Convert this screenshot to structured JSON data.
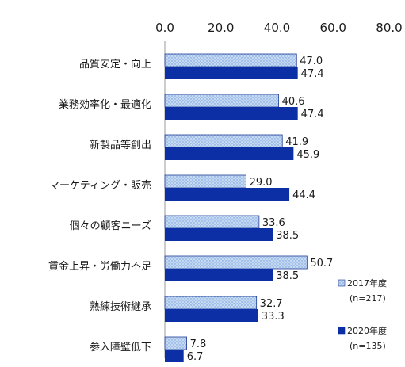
{
  "chart_data": {
    "type": "bar",
    "orientation": "horizontal",
    "title": "",
    "xlabel": "",
    "ylabel": "",
    "xlim": [
      0,
      80
    ],
    "x_ticks": [
      "0.0",
      "20.0",
      "40.0",
      "60.0",
      "80.0"
    ],
    "x_axis_position": "top",
    "grid": false,
    "legend_position": "bottom-right",
    "categories": [
      "品質安定・向上",
      "業務効率化・最適化",
      "新製品等創出",
      "マーケティング・販売",
      "個々の顧客ニーズ",
      "賃金上昇・労働力不足",
      "熟練技術継承",
      "参入障壁低下"
    ],
    "series": [
      {
        "name": "2017年度",
        "sample_size": "(n=217)",
        "values": [
          47.0,
          40.6,
          41.9,
          29.0,
          33.6,
          50.7,
          32.7,
          7.8
        ],
        "labels": [
          "47.0",
          "40.6",
          "41.9",
          "29.0",
          "33.6",
          "50.7",
          "32.7",
          "7.8"
        ],
        "color": "#c5d9f1",
        "dot_color": "#6f9be0",
        "stroke": "#1f3a93"
      },
      {
        "name": "2020年度",
        "sample_size": "(n=135)",
        "values": [
          47.4,
          47.4,
          45.9,
          44.4,
          38.5,
          38.5,
          33.3,
          6.7
        ],
        "labels": [
          "47.4",
          "47.4",
          "45.9",
          "44.4",
          "38.5",
          "38.5",
          "33.3",
          "6.7"
        ],
        "color": "#0c2fa5",
        "dot_color": "",
        "stroke": "#0c2fa5"
      }
    ]
  }
}
